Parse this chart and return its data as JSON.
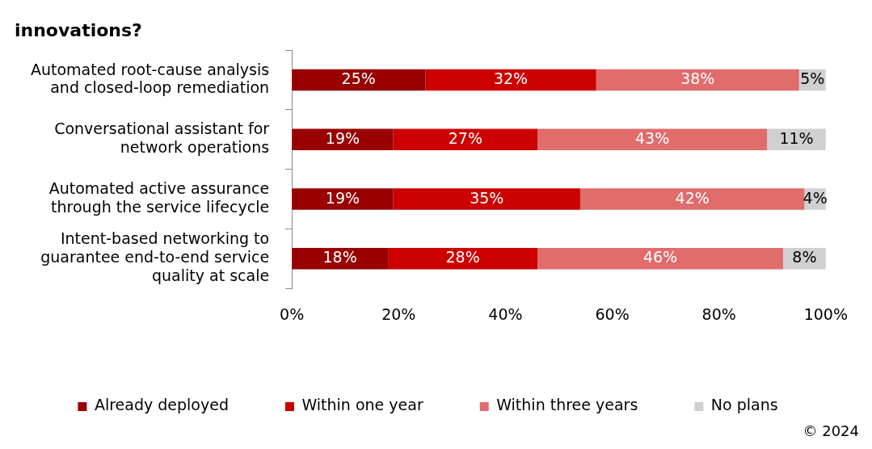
{
  "chart_data": {
    "type": "bar",
    "orientation": "horizontal",
    "stacked": true,
    "title": "innovations?",
    "categories": [
      "Automated root-cause analysis and closed-loop remediation",
      "Conversational assistant for network operations",
      "Automated active assurance through the service lifecycle",
      "Intent-based networking to guarantee end-to-end service quality at scale"
    ],
    "series": [
      {
        "name": "Already deployed",
        "color": "#990000",
        "values": [
          25,
          19,
          19,
          18
        ],
        "value_labels": [
          "25%",
          "19%",
          "19%",
          "18%"
        ]
      },
      {
        "name": "Within one year",
        "color": "#cc0000",
        "values": [
          32,
          27,
          35,
          28
        ],
        "value_labels": [
          "32%",
          "27%",
          "35%",
          "28%"
        ]
      },
      {
        "name": "Within three years",
        "color": "#e06c6c",
        "values": [
          38,
          43,
          42,
          46
        ],
        "value_labels": [
          "38%",
          "43%",
          "42%",
          "46%"
        ]
      },
      {
        "name": "No plans",
        "color": "#d0d0d0",
        "values": [
          5,
          11,
          4,
          8
        ],
        "value_labels": [
          "5%",
          "11%",
          "4%",
          "8%"
        ]
      }
    ],
    "xlim": [
      0,
      100
    ],
    "xticks": [
      {
        "value": 0,
        "label": "0%"
      },
      {
        "value": 20,
        "label": "20%"
      },
      {
        "value": 40,
        "label": "40%"
      },
      {
        "value": 60,
        "label": "60%"
      },
      {
        "value": 80,
        "label": "80%"
      },
      {
        "value": 100,
        "label": "100%"
      }
    ],
    "legend": "bottom",
    "grid": false,
    "annotations": [
      "© 2024"
    ]
  }
}
